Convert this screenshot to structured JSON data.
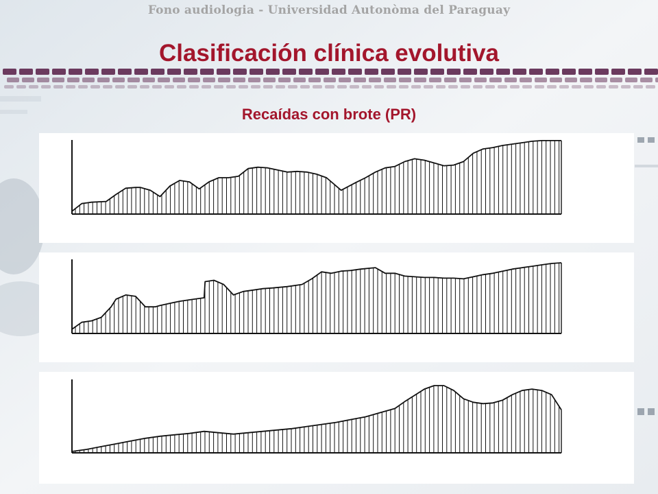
{
  "slide": {
    "header": "Fono audiologia - Universidad Autonòma del Paraguay",
    "title": "Clasificación clínica evolutiva",
    "subtitle": "Recaídas con brote (PR)"
  },
  "colors": {
    "accent": "#a3162c",
    "header_text": "#a4a4a4",
    "dash_band": "#6b3a5e",
    "chart_stroke": "#111111"
  },
  "chart_data": [
    {
      "type": "area",
      "title": "",
      "xlabel": "",
      "ylabel": "",
      "xlim": [
        0,
        100
      ],
      "ylim": [
        0,
        100
      ],
      "grid": false,
      "legend": "none",
      "x": [
        0,
        2,
        4,
        7,
        9,
        11,
        13,
        14,
        16,
        18,
        20,
        22,
        24,
        26,
        28,
        30,
        32,
        34,
        36,
        38,
        40,
        42,
        44,
        46,
        48,
        50,
        52,
        55,
        58,
        60,
        62,
        64,
        66,
        68,
        70,
        72,
        74,
        76,
        78,
        80,
        82,
        84,
        86,
        88,
        90,
        92,
        94,
        96,
        98,
        100
      ],
      "y": [
        4,
        15,
        17,
        18,
        28,
        37,
        38,
        38,
        34,
        25,
        40,
        48,
        46,
        36,
        46,
        52,
        52,
        54,
        65,
        67,
        66,
        63,
        60,
        61,
        60,
        57,
        52,
        34,
        45,
        52,
        60,
        66,
        68,
        75,
        79,
        77,
        73,
        69,
        70,
        75,
        87,
        93,
        95,
        98,
        100,
        102,
        104,
        105,
        105,
        105
      ]
    },
    {
      "type": "area",
      "title": "",
      "xlabel": "",
      "ylabel": "",
      "xlim": [
        0,
        100
      ],
      "ylim": [
        0,
        100
      ],
      "grid": false,
      "legend": "none",
      "x": [
        0,
        2,
        4,
        6,
        8,
        9,
        11,
        13,
        15,
        17,
        18,
        20,
        22,
        24,
        26,
        27,
        27.2,
        29,
        31,
        33,
        35,
        37,
        39,
        41,
        44,
        47,
        49,
        51,
        53,
        55,
        57,
        59,
        62,
        64,
        66,
        68,
        70,
        72,
        74,
        76,
        78,
        80,
        82,
        84,
        86,
        88,
        90,
        92,
        94,
        96,
        98,
        100
      ],
      "y": [
        6,
        16,
        18,
        23,
        38,
        49,
        55,
        53,
        38,
        38,
        40,
        43,
        46,
        48,
        50,
        51,
        74,
        76,
        70,
        55,
        60,
        62,
        64,
        65,
        67,
        70,
        78,
        88,
        86,
        89,
        90,
        92,
        94,
        86,
        86,
        82,
        81,
        80,
        80,
        79,
        79,
        78,
        81,
        84,
        86,
        89,
        92,
        94,
        96,
        98,
        100,
        101
      ]
    },
    {
      "type": "area",
      "title": "",
      "xlabel": "",
      "ylabel": "",
      "xlim": [
        0,
        100
      ],
      "ylim": [
        0,
        100
      ],
      "grid": false,
      "legend": "none",
      "x": [
        0,
        3,
        6,
        9,
        12,
        15,
        18,
        21,
        24,
        27,
        30,
        33,
        36,
        39,
        42,
        45,
        48,
        51,
        54,
        57,
        60,
        63,
        66,
        68,
        70,
        72,
        74,
        76,
        78,
        80,
        82,
        84,
        86,
        88,
        90,
        92,
        94,
        96,
        98,
        100
      ],
      "y": [
        2,
        5,
        9,
        13,
        17,
        21,
        24,
        26,
        28,
        31,
        29,
        27,
        29,
        31,
        33,
        35,
        38,
        41,
        44,
        48,
        52,
        58,
        64,
        74,
        83,
        92,
        97,
        97,
        90,
        78,
        73,
        71,
        72,
        76,
        84,
        90,
        92,
        90,
        84,
        62
      ]
    }
  ]
}
